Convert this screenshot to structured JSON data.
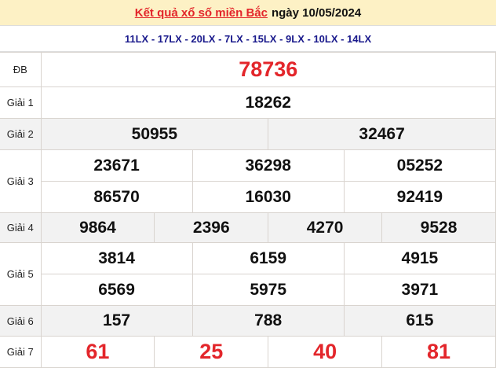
{
  "header": {
    "link": "Kết quả xổ số miền Bắc",
    "date": "ngày 10/05/2024"
  },
  "codes": "11LX - 17LX - 20LX - 7LX - 15LX - 9LX - 10LX - 14LX",
  "colors": {
    "accent": "#e3262b",
    "header_bg": "#fdf1c5",
    "codes": "#1a1a8c",
    "alt_row": "#f2f2f2"
  },
  "prizes": {
    "db": {
      "label": "ĐB",
      "values": [
        "78736"
      ]
    },
    "g1": {
      "label": "Giải 1",
      "values": [
        "18262"
      ]
    },
    "g2": {
      "label": "Giải 2",
      "values": [
        "50955",
        "32467"
      ]
    },
    "g3": {
      "label": "Giải 3",
      "values": [
        "23671",
        "36298",
        "05252",
        "86570",
        "16030",
        "92419"
      ]
    },
    "g4": {
      "label": "Giải 4",
      "values": [
        "9864",
        "2396",
        "4270",
        "9528"
      ]
    },
    "g5": {
      "label": "Giải 5",
      "values": [
        "3814",
        "6159",
        "4915",
        "6569",
        "5975",
        "3971"
      ]
    },
    "g6": {
      "label": "Giải 6",
      "values": [
        "157",
        "788",
        "615"
      ]
    },
    "g7": {
      "label": "Giải 7",
      "values": [
        "61",
        "25",
        "40",
        "81"
      ]
    }
  }
}
